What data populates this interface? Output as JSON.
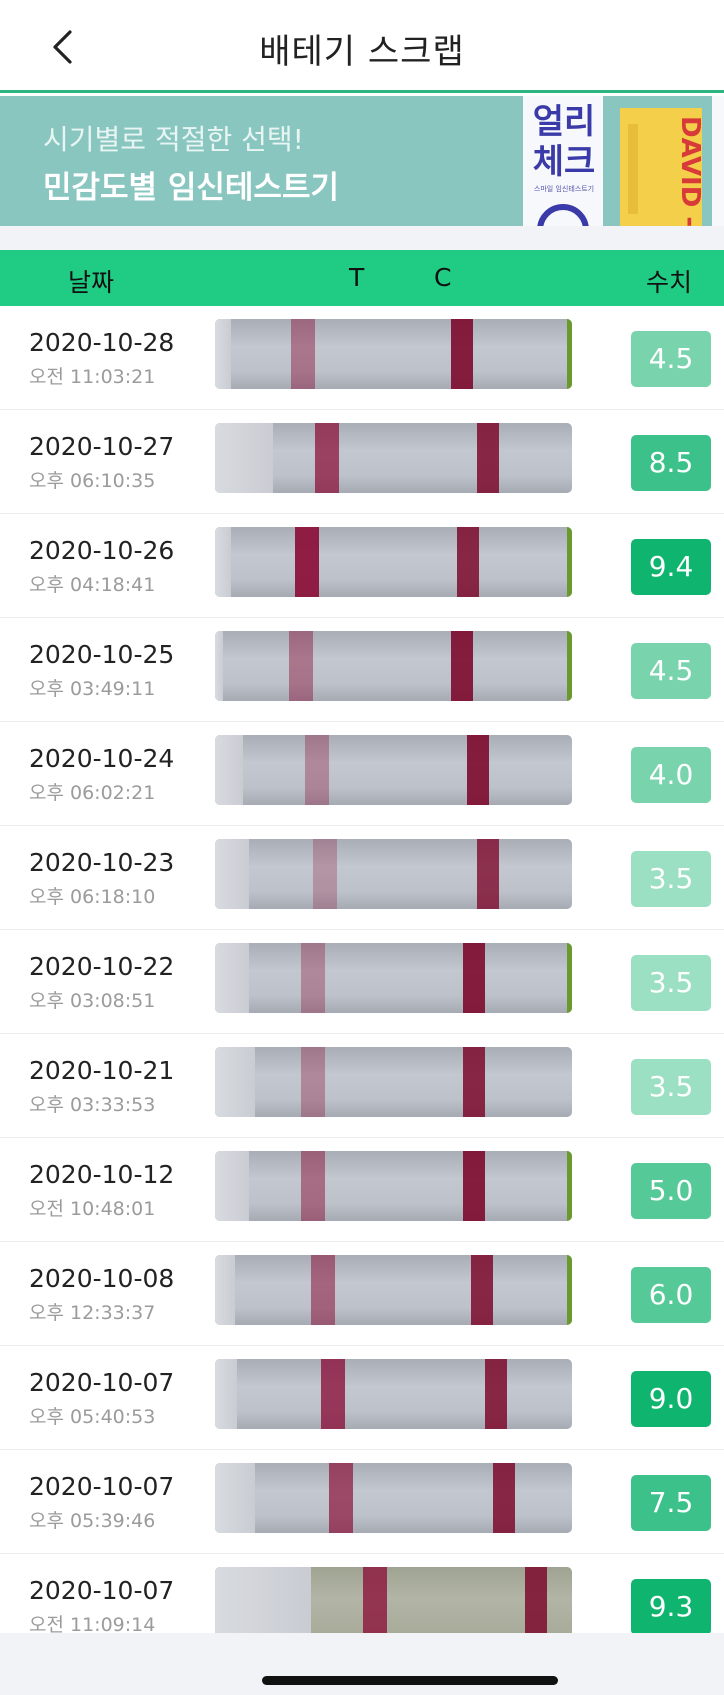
{
  "header": {
    "title": "배테기 스크랩",
    "back_icon": "chevron-left-icon"
  },
  "banner": {
    "line1": "시기별로 적절한 선택!",
    "line2": "민감도별 임신테스트기",
    "pkg1_title": "얼리\n체크",
    "pkg1_sub": "스마일 임신테스트기",
    "pkg2_title": "DAVID -SUPER",
    "background": "#8ac6c0"
  },
  "columns": {
    "date": "날짜",
    "t": "T",
    "c": "C",
    "value": "수치"
  },
  "colors": {
    "accent": "#20cb84",
    "header_line": "#2cb580"
  },
  "rows": [
    {
      "date": "2020-10-28",
      "time": "오전 11:03:21",
      "value": "4.5",
      "t_intensity": 0.45,
      "c_intensity": 0.9
    },
    {
      "date": "2020-10-27",
      "time": "오후 06:10:35",
      "value": "8.5",
      "t_intensity": 0.75,
      "c_intensity": 0.85
    },
    {
      "date": "2020-10-26",
      "time": "오후 04:18:41",
      "value": "9.4",
      "t_intensity": 0.95,
      "c_intensity": 0.85
    },
    {
      "date": "2020-10-25",
      "time": "오후 03:49:11",
      "value": "4.5",
      "t_intensity": 0.45,
      "c_intensity": 0.9
    },
    {
      "date": "2020-10-24",
      "time": "오후 06:02:21",
      "value": "4.0",
      "t_intensity": 0.35,
      "c_intensity": 0.9
    },
    {
      "date": "2020-10-23",
      "time": "오후 06:18:10",
      "value": "3.5",
      "t_intensity": 0.28,
      "c_intensity": 0.8
    },
    {
      "date": "2020-10-22",
      "time": "오후 03:08:51",
      "value": "3.5",
      "t_intensity": 0.35,
      "c_intensity": 0.9
    },
    {
      "date": "2020-10-21",
      "time": "오후 03:33:53",
      "value": "3.5",
      "t_intensity": 0.35,
      "c_intensity": 0.85
    },
    {
      "date": "2020-10-12",
      "time": "오전 10:48:01",
      "value": "5.0",
      "t_intensity": 0.5,
      "c_intensity": 0.9
    },
    {
      "date": "2020-10-08",
      "time": "오후 12:33:37",
      "value": "6.0",
      "t_intensity": 0.55,
      "c_intensity": 0.85
    },
    {
      "date": "2020-10-07",
      "time": "오후 05:40:53",
      "value": "9.0",
      "t_intensity": 0.8,
      "c_intensity": 0.85
    },
    {
      "date": "2020-10-07",
      "time": "오후 05:39:46",
      "value": "7.5",
      "t_intensity": 0.7,
      "c_intensity": 0.85
    },
    {
      "date": "2020-10-07",
      "time": "오전 11:09:14",
      "value": "9.3",
      "t_intensity": 0.8,
      "c_intensity": 0.85
    }
  ]
}
